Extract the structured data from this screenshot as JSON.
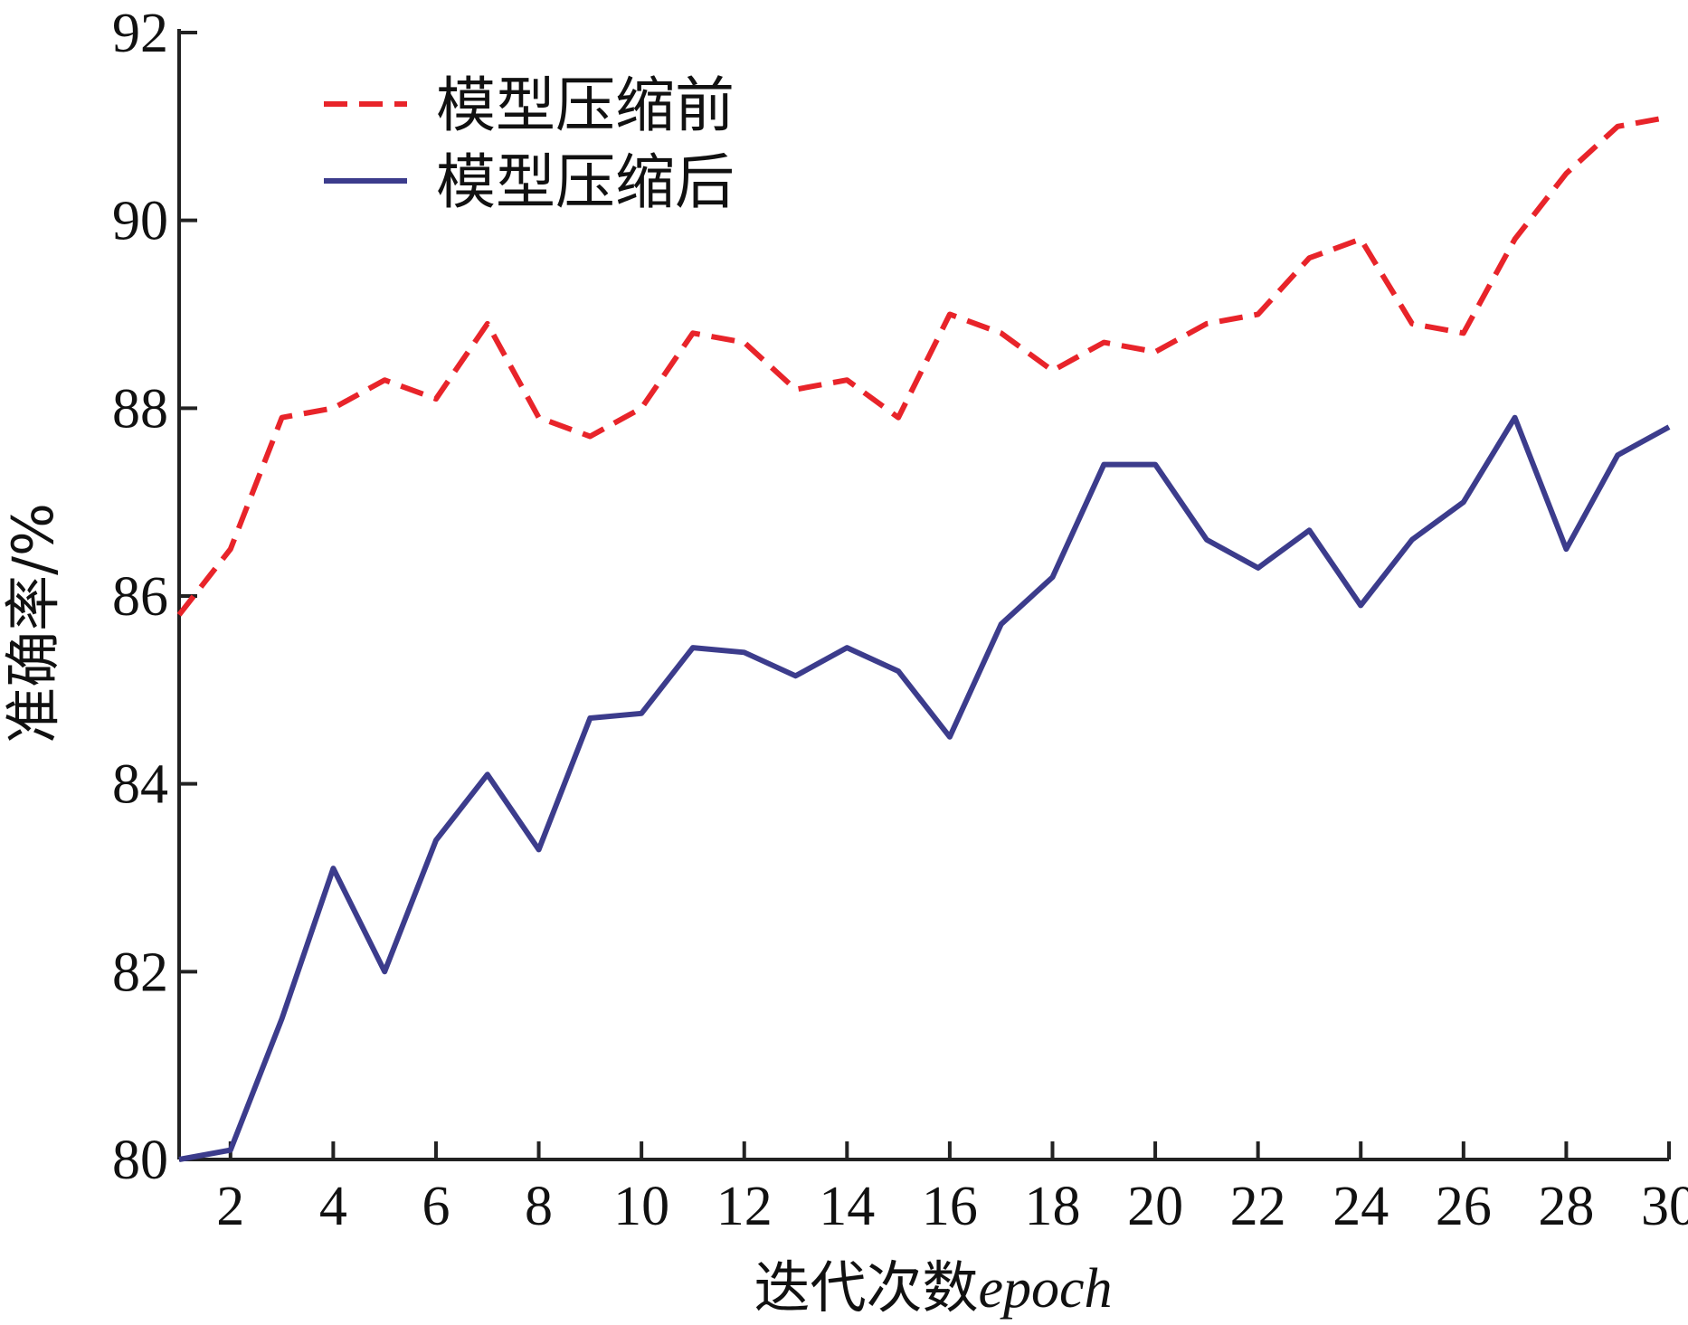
{
  "chart_data": {
    "type": "line",
    "xlabel": "迭代次数",
    "xlabel_suffix": "epoch",
    "ylabel": "准确率/%",
    "xlim": [
      1,
      30
    ],
    "ylim": [
      80,
      92
    ],
    "x_ticks": [
      2,
      4,
      6,
      8,
      10,
      12,
      14,
      16,
      18,
      20,
      22,
      24,
      26,
      28,
      30
    ],
    "y_ticks": [
      80,
      82,
      84,
      86,
      88,
      90,
      92
    ],
    "grid": false,
    "legend_position": "top-left",
    "x": [
      1,
      2,
      3,
      4,
      5,
      6,
      7,
      8,
      9,
      10,
      11,
      12,
      13,
      14,
      15,
      16,
      17,
      18,
      19,
      20,
      21,
      22,
      23,
      24,
      25,
      26,
      27,
      28,
      29,
      30
    ],
    "series": [
      {
        "name": "模型压缩前",
        "color": "#e8242a",
        "style": "dashed",
        "values": [
          85.8,
          86.5,
          87.9,
          88.0,
          88.3,
          88.1,
          88.9,
          87.9,
          87.7,
          88.0,
          88.8,
          88.7,
          88.2,
          88.3,
          87.9,
          89.0,
          88.8,
          88.4,
          88.7,
          88.6,
          88.9,
          89.0,
          89.6,
          89.8,
          88.9,
          88.8,
          89.8,
          90.5,
          91.0,
          91.1
        ]
      },
      {
        "name": "模型压缩后",
        "color": "#3c3c8c",
        "style": "solid",
        "values": [
          80.0,
          80.1,
          81.5,
          83.1,
          82.0,
          83.4,
          84.1,
          83.3,
          84.7,
          84.75,
          85.45,
          85.4,
          85.15,
          85.45,
          85.2,
          84.5,
          85.7,
          86.2,
          87.4,
          87.4,
          86.6,
          86.3,
          86.7,
          85.9,
          86.6,
          87.0,
          87.9,
          86.5,
          87.5,
          87.8
        ]
      }
    ]
  }
}
